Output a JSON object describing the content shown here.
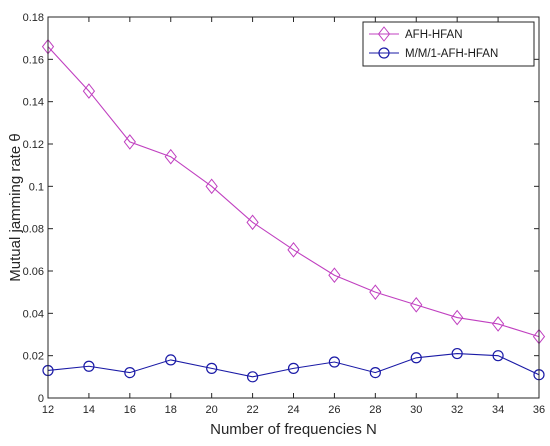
{
  "chart_data": {
    "type": "line",
    "xlabel": "Number of frequencies N",
    "ylabel": "Mutual jamming rate θ",
    "xlim": [
      12,
      36
    ],
    "ylim": [
      0,
      0.18
    ],
    "x": [
      12,
      14,
      16,
      18,
      20,
      22,
      24,
      26,
      28,
      30,
      32,
      34,
      36
    ],
    "xticks": [
      "12",
      "14",
      "16",
      "18",
      "20",
      "22",
      "24",
      "26",
      "28",
      "30",
      "32",
      "34",
      "36"
    ],
    "yticks": [
      0,
      0.02,
      0.04,
      0.06,
      0.08,
      0.1,
      0.12,
      0.14,
      0.16,
      0.18
    ],
    "ytick_labels": [
      "0",
      "0.02",
      "0.04",
      "0.06",
      "0.08",
      "0.1",
      "0.12",
      "0.14",
      "0.16",
      "0.18"
    ],
    "grid": false,
    "legend_position": "top-right",
    "series": [
      {
        "name": "AFH-HFAN",
        "color": "#c040c0",
        "marker": "diamond",
        "values": [
          0.166,
          0.145,
          0.121,
          0.114,
          0.1,
          0.083,
          0.07,
          0.058,
          0.05,
          0.044,
          0.038,
          0.035,
          0.029
        ]
      },
      {
        "name": "M/M/1-AFH-HFAN",
        "color": "#1a1aa6",
        "marker": "circle",
        "values": [
          0.013,
          0.015,
          0.012,
          0.018,
          0.014,
          0.01,
          0.014,
          0.017,
          0.012,
          0.019,
          0.021,
          0.02,
          0.011
        ]
      }
    ]
  }
}
